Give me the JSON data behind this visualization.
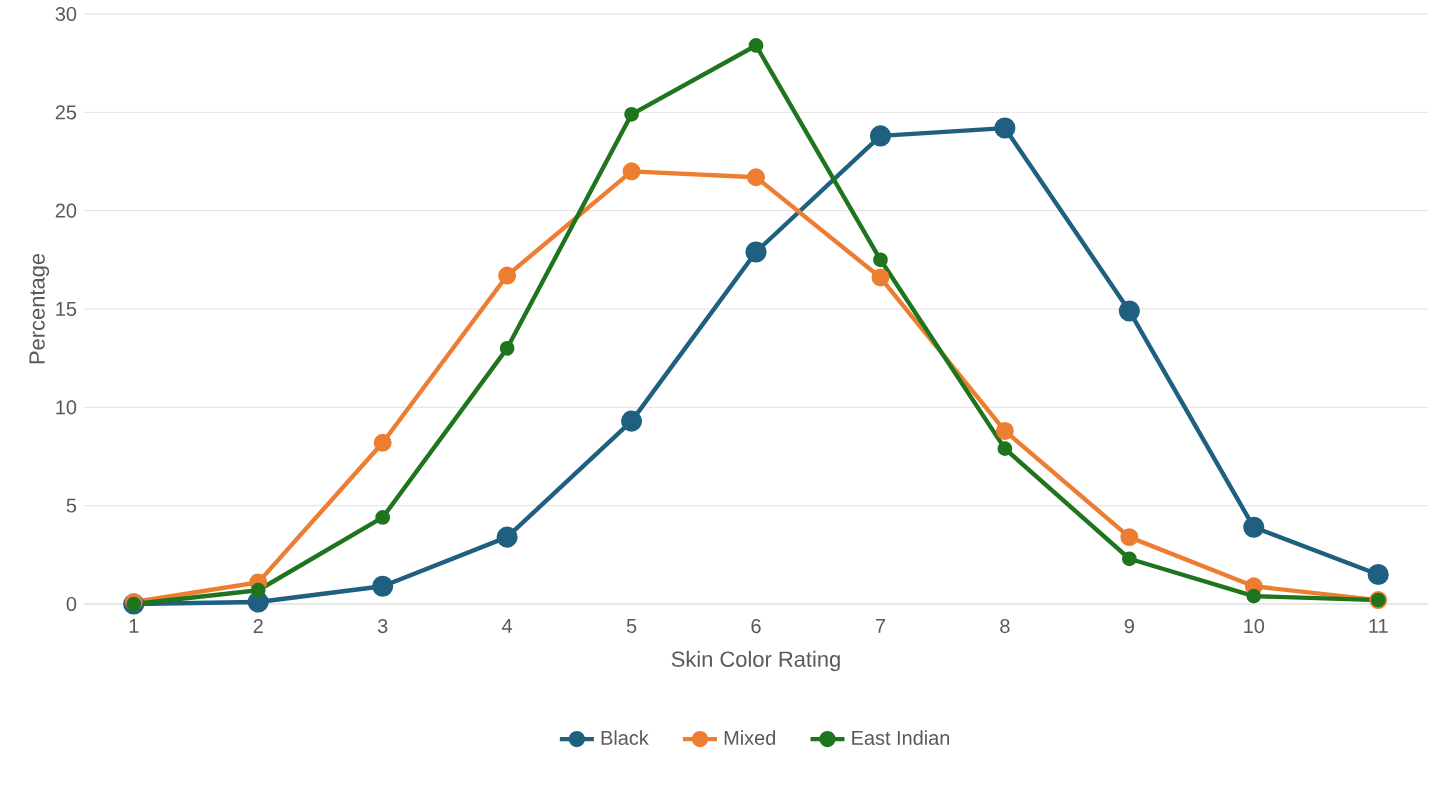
{
  "chart_data": {
    "type": "line",
    "xlabel": "Skin Color Rating",
    "ylabel": "Percentage",
    "categories": [
      "1",
      "2",
      "3",
      "4",
      "5",
      "6",
      "7",
      "8",
      "9",
      "10",
      "11"
    ],
    "series": [
      {
        "name": "Black",
        "color": "#1f5f80",
        "values": [
          0,
          0.1,
          0.9,
          3.4,
          9.3,
          17.9,
          23.8,
          24.2,
          14.9,
          3.9,
          1.5
        ]
      },
      {
        "name": "Mixed",
        "color": "#ed7d31",
        "values": [
          0.1,
          1.1,
          8.2,
          16.7,
          22.0,
          21.7,
          16.6,
          8.8,
          3.4,
          0.9,
          0.2
        ]
      },
      {
        "name": "East Indian",
        "color": "#1e751e",
        "values": [
          0,
          0.7,
          4.4,
          13.0,
          24.9,
          28.4,
          17.5,
          7.9,
          2.3,
          0.4,
          0.2
        ]
      }
    ],
    "ylim": [
      0,
      30
    ],
    "yticks": [
      0,
      5,
      10,
      15,
      20,
      25,
      30
    ],
    "grid": "y",
    "legend": "bottom",
    "marker": "circle",
    "line_style": "solid"
  }
}
